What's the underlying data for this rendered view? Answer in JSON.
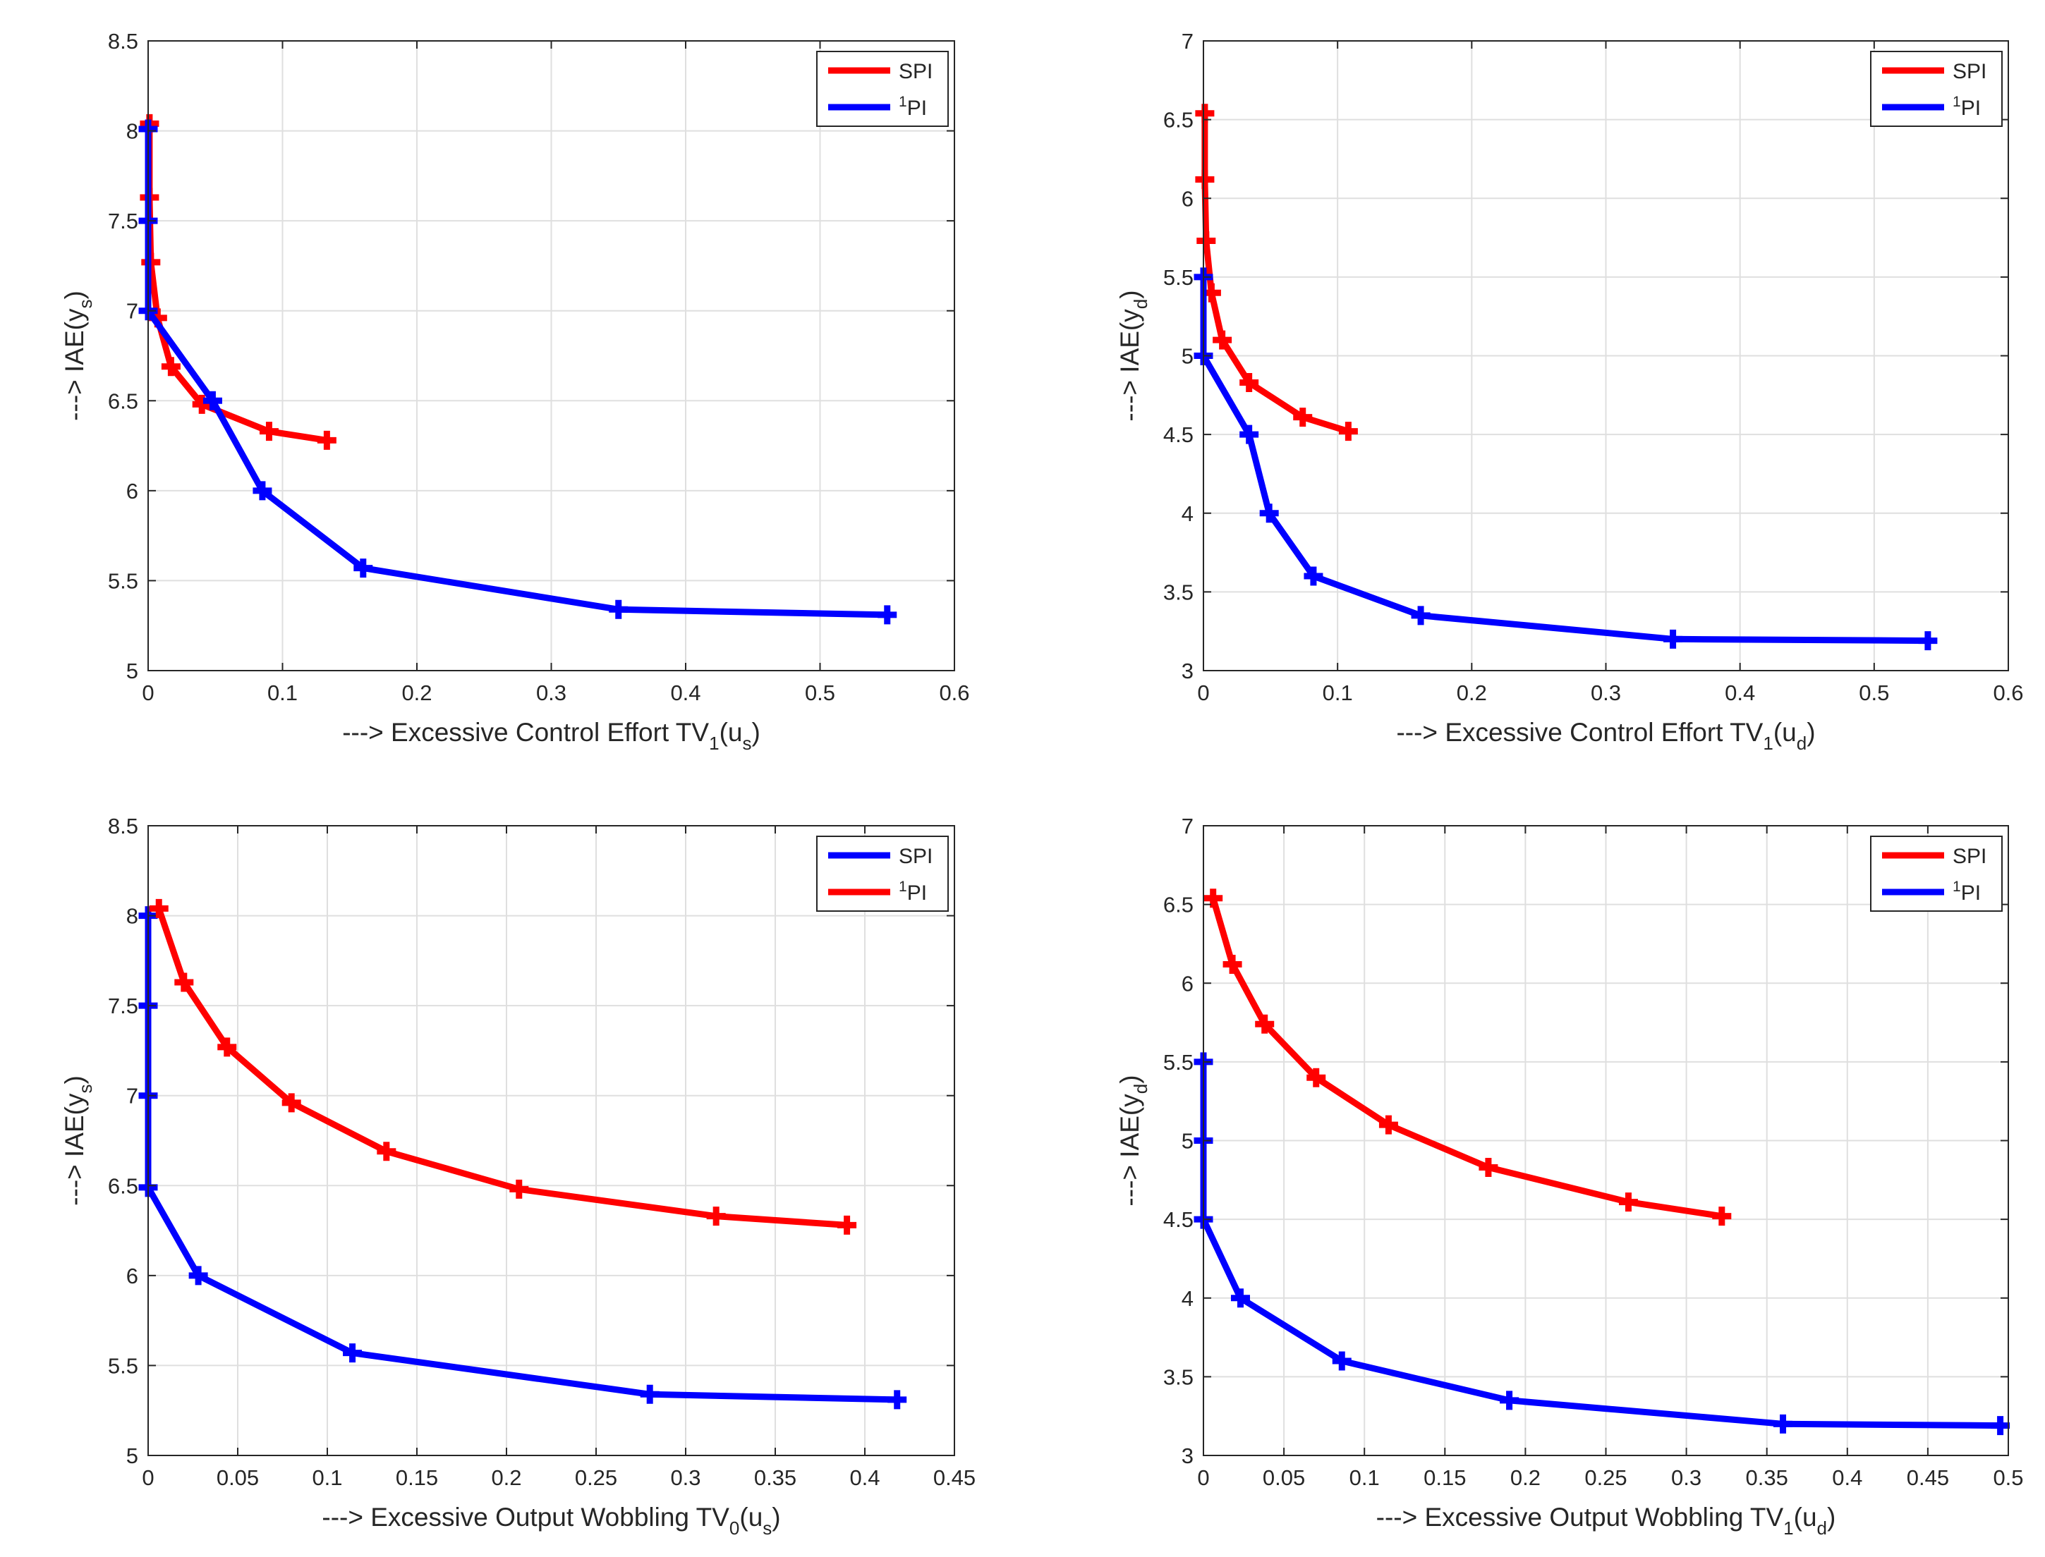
{
  "colors": {
    "spi_red": "#ff0000",
    "pi_blue": "#0000ff",
    "axis": "#262626",
    "grid": "#dfdfdf"
  },
  "chart_data": [
    {
      "type": "line",
      "xlabel": {
        "prefix": "---> Excessive Control Effort TV",
        "sub1": "1",
        "mid": "(u",
        "sub2": "s",
        "suffix": ")"
      },
      "ylabel": {
        "prefix": "---> IAE(y",
        "sub": "s",
        "suffix": ")"
      },
      "xlim": [
        0,
        0.6
      ],
      "ylim": [
        5,
        8.5
      ],
      "xticks": [
        0,
        0.1,
        0.2,
        0.3,
        0.4,
        0.5,
        0.6
      ],
      "xtick_labels": [
        "0",
        "0.1",
        "0.2",
        "0.3",
        "0.4",
        "0.5",
        "0.6"
      ],
      "yticks": [
        5,
        5.5,
        6,
        6.5,
        7,
        7.5,
        8,
        8.5
      ],
      "ytick_labels": [
        "5",
        "5.5",
        "6",
        "6.5",
        "7",
        "7.5",
        "8",
        "8.5"
      ],
      "grid": true,
      "legend": "top-right",
      "series": [
        {
          "name": "SPI",
          "name_sup": "",
          "color": "#ff0000",
          "x": [
            0.001,
            0.001,
            0.002,
            0.007,
            0.017,
            0.04,
            0.09,
            0.133
          ],
          "y": [
            8.04,
            7.63,
            7.27,
            6.96,
            6.69,
            6.48,
            6.33,
            6.28
          ]
        },
        {
          "name": "PI",
          "name_sup": "1",
          "color": "#0000ff",
          "x": [
            0.0,
            0.0,
            0.0,
            0.048,
            0.085,
            0.16,
            0.35,
            0.55
          ],
          "y": [
            8.01,
            7.5,
            7.0,
            6.5,
            6.0,
            5.57,
            5.34,
            5.31
          ]
        }
      ]
    },
    {
      "type": "line",
      "xlabel": {
        "prefix": "---> Excessive Control Effort TV",
        "sub1": "1",
        "mid": "(u",
        "sub2": "d",
        "suffix": ")"
      },
      "ylabel": {
        "prefix": "---> IAE(y",
        "sub": "d",
        "suffix": ")"
      },
      "xlim": [
        0,
        0.6
      ],
      "ylim": [
        3,
        7
      ],
      "xticks": [
        0,
        0.1,
        0.2,
        0.3,
        0.4,
        0.5,
        0.6
      ],
      "xtick_labels": [
        "0",
        "0.1",
        "0.2",
        "0.3",
        "0.4",
        "0.5",
        "0.6"
      ],
      "yticks": [
        3,
        3.5,
        4,
        4.5,
        5,
        5.5,
        6,
        6.5,
        7
      ],
      "ytick_labels": [
        "3",
        "3.5",
        "4",
        "4.5",
        "5",
        "5.5",
        "6",
        "6.5",
        "7"
      ],
      "grid": true,
      "legend": "top-right",
      "series": [
        {
          "name": "SPI",
          "name_sup": "",
          "color": "#ff0000",
          "x": [
            0.001,
            0.001,
            0.002,
            0.006,
            0.014,
            0.034,
            0.074,
            0.108
          ],
          "y": [
            6.54,
            6.12,
            5.73,
            5.4,
            5.1,
            4.83,
            4.61,
            4.52
          ]
        },
        {
          "name": "PI",
          "name_sup": "1",
          "color": "#0000ff",
          "x": [
            0.0,
            0.0,
            0.034,
            0.049,
            0.082,
            0.162,
            0.35,
            0.54
          ],
          "y": [
            5.5,
            5.0,
            4.5,
            4.0,
            3.6,
            3.35,
            3.2,
            3.19
          ]
        }
      ]
    },
    {
      "type": "line",
      "xlabel": {
        "prefix": "---> Excessive Output Wobbling TV",
        "sub1": "0",
        "mid": "(u",
        "sub2": "s",
        "suffix": ")"
      },
      "ylabel": {
        "prefix": "---> IAE(y",
        "sub": "s",
        "suffix": ")"
      },
      "xlim": [
        0,
        0.45
      ],
      "ylim": [
        5,
        8.5
      ],
      "xticks": [
        0,
        0.05,
        0.1,
        0.15,
        0.2,
        0.25,
        0.3,
        0.35,
        0.4,
        0.45
      ],
      "xtick_labels": [
        "0",
        "0.05",
        "0.1",
        "0.15",
        "0.2",
        "0.25",
        "0.3",
        "0.35",
        "0.4",
        "0.45"
      ],
      "yticks": [
        5,
        5.5,
        6,
        6.5,
        7,
        7.5,
        8,
        8.5
      ],
      "ytick_labels": [
        "5",
        "5.5",
        "6",
        "6.5",
        "7",
        "7.5",
        "8",
        "8.5"
      ],
      "grid": true,
      "legend": "top-right",
      "series": [
        {
          "name": "SPI",
          "name_sup": "",
          "color": "#0000ff",
          "x": [
            0.0,
            0.0,
            0.0,
            0.0,
            0.028,
            0.114,
            0.28,
            0.418
          ],
          "y": [
            8.0,
            7.5,
            7.0,
            6.49,
            6.0,
            5.57,
            5.34,
            5.31
          ]
        },
        {
          "name": "PI",
          "name_sup": "1",
          "color": "#ff0000",
          "x": [
            0.006,
            0.02,
            0.044,
            0.08,
            0.133,
            0.207,
            0.317,
            0.39
          ],
          "y": [
            8.04,
            7.63,
            7.27,
            6.96,
            6.69,
            6.48,
            6.33,
            6.28
          ]
        }
      ]
    },
    {
      "type": "line",
      "xlabel": {
        "prefix": "---> Excessive Output Wobbling TV",
        "sub1": "1",
        "mid": "(u",
        "sub2": "d",
        "suffix": ")"
      },
      "ylabel": {
        "prefix": "---> IAE(y",
        "sub": "d",
        "suffix": ")"
      },
      "xlim": [
        0,
        0.5
      ],
      "ylim": [
        3,
        7
      ],
      "xticks": [
        0,
        0.05,
        0.1,
        0.15,
        0.2,
        0.25,
        0.3,
        0.35,
        0.4,
        0.45,
        0.5
      ],
      "xtick_labels": [
        "0",
        "0.05",
        "0.1",
        "0.15",
        "0.2",
        "0.25",
        "0.3",
        "0.35",
        "0.4",
        "0.45",
        "0.5"
      ],
      "yticks": [
        3,
        3.5,
        4,
        4.5,
        5,
        5.5,
        6,
        6.5,
        7
      ],
      "ytick_labels": [
        "3",
        "3.5",
        "4",
        "4.5",
        "5",
        "5.5",
        "6",
        "6.5",
        "7"
      ],
      "grid": true,
      "legend": "top-right",
      "series": [
        {
          "name": "SPI",
          "name_sup": "",
          "color": "#ff0000",
          "x": [
            0.006,
            0.018,
            0.038,
            0.07,
            0.115,
            0.177,
            0.264,
            0.322
          ],
          "y": [
            6.54,
            6.12,
            5.74,
            5.4,
            5.1,
            4.83,
            4.61,
            4.52
          ]
        },
        {
          "name": "PI",
          "name_sup": "1",
          "color": "#0000ff",
          "x": [
            0.0,
            0.0,
            0.0,
            0.023,
            0.086,
            0.19,
            0.36,
            0.495
          ],
          "y": [
            5.5,
            5.0,
            4.5,
            4.0,
            3.6,
            3.35,
            3.2,
            3.19
          ]
        }
      ]
    }
  ]
}
